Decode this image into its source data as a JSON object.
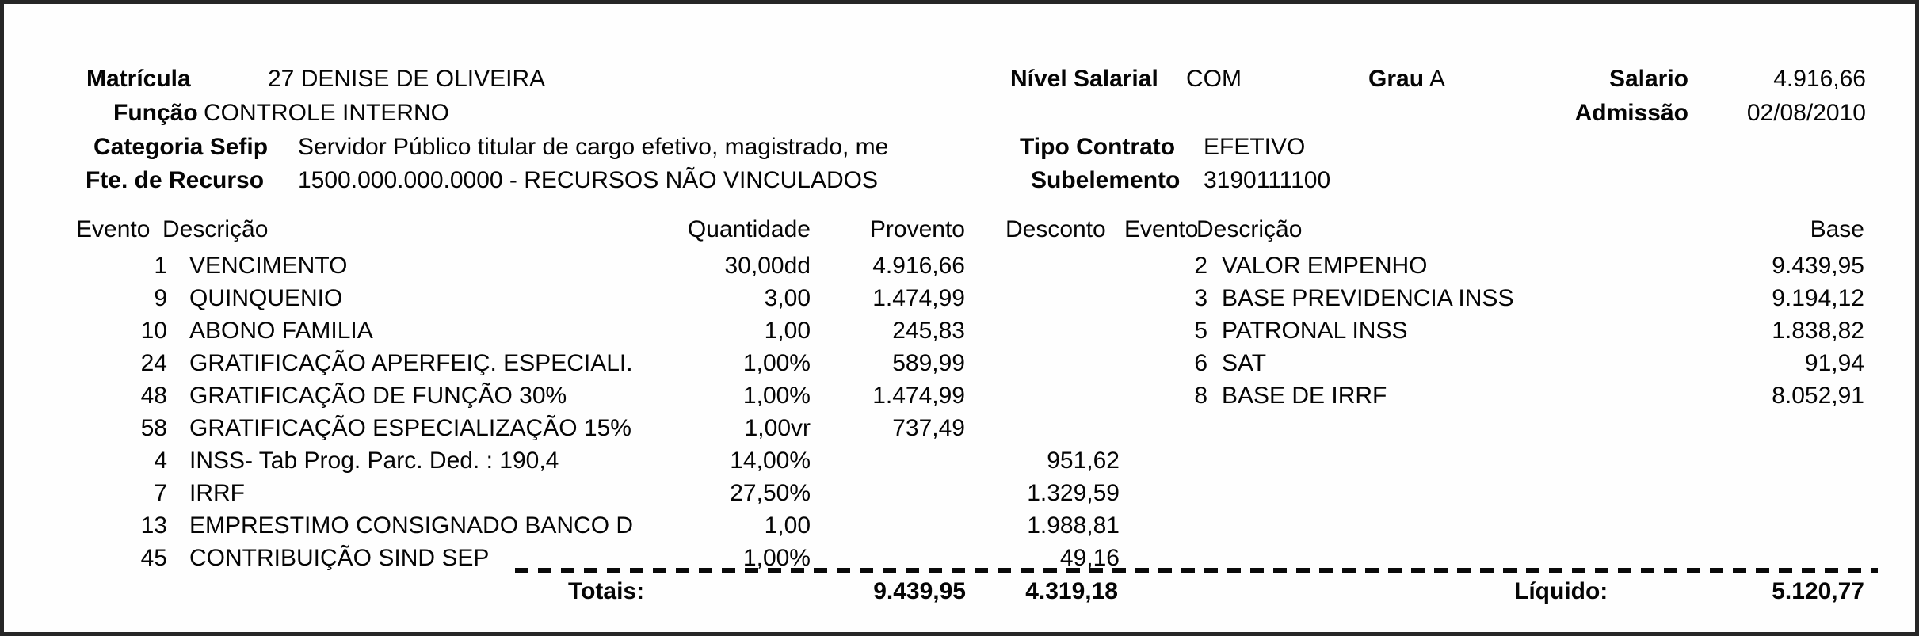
{
  "document_type": "payslip",
  "employee": {
    "matricula_label": "Matrícula",
    "matricula_value": "27 DENISE DE OLIVEIRA",
    "funcao_label": "Função",
    "funcao_value": "CONTROLE INTERNO",
    "categoria_sefip_label": "Categoria Sefip",
    "categoria_sefip_value": "Servidor Público titular de cargo efetivo, magistrado, me",
    "fte_recurso_label": "Fte. de Recurso",
    "fte_recurso_value": "1500.000.000.0000 - RECURSOS NÃO VINCULADOS",
    "nivel_salarial_label": "Nível Salarial",
    "nivel_salarial_value": "COM",
    "grau_label": "Grau",
    "grau_value": "A",
    "salario_label": "Salario",
    "salario_value": "4.916,66",
    "admissao_label": "Admissão",
    "admissao_value": "02/08/2010",
    "tipo_contrato_label": "Tipo Contrato",
    "tipo_contrato_value": "EFETIVO",
    "subelemento_label": "Subelemento",
    "subelemento_value": "3190111100"
  },
  "table": {
    "headers": {
      "evento_left": "Evento",
      "descricao_left": "Descrição",
      "quantidade": "Quantidade",
      "provento": "Provento",
      "desconto": "Desconto",
      "evento_right": "Evento",
      "descricao_right": "Descrição",
      "base": "Base"
    },
    "event_rows": [
      {
        "evento": "1",
        "descricao": "VENCIMENTO",
        "quantidade": "30,00dd",
        "provento": "4.916,66",
        "desconto": ""
      },
      {
        "evento": "9",
        "descricao": "QUINQUENIO",
        "quantidade": "3,00",
        "provento": "1.474,99",
        "desconto": ""
      },
      {
        "evento": "10",
        "descricao": "ABONO FAMILIA",
        "quantidade": "1,00",
        "provento": "245,83",
        "desconto": ""
      },
      {
        "evento": "24",
        "descricao": "GRATIFICAÇÃO APERFEIÇ. ESPECIALI.",
        "quantidade": "1,00%",
        "provento": "589,99",
        "desconto": ""
      },
      {
        "evento": "48",
        "descricao": "GRATIFICAÇÃO DE FUNÇÃO 30%",
        "quantidade": "1,00%",
        "provento": "1.474,99",
        "desconto": ""
      },
      {
        "evento": "58",
        "descricao": "GRATIFICAÇÃO ESPECIALIZAÇÃO 15%",
        "quantidade": "1,00vr",
        "provento": "737,49",
        "desconto": ""
      },
      {
        "evento": "4",
        "descricao": "INSS- Tab Prog. Parc. Ded. : 190,4",
        "quantidade": "14,00%",
        "provento": "",
        "desconto": "951,62"
      },
      {
        "evento": "7",
        "descricao": "IRRF",
        "quantidade": "27,50%",
        "provento": "",
        "desconto": "1.329,59"
      },
      {
        "evento": "13",
        "descricao": "EMPRESTIMO CONSIGNADO BANCO D",
        "quantidade": "1,00",
        "provento": "",
        "desconto": "1.988,81"
      },
      {
        "evento": "45",
        "descricao": "CONTRIBUIÇÃO SIND SEP",
        "quantidade": "1,00%",
        "provento": "",
        "desconto": "49,16"
      }
    ],
    "base_rows": [
      {
        "evento": "2",
        "descricao": "VALOR EMPENHO",
        "base": "9.439,95"
      },
      {
        "evento": "3",
        "descricao": "BASE PREVIDENCIA INSS",
        "base": "9.194,12"
      },
      {
        "evento": "5",
        "descricao": "PATRONAL INSS",
        "base": "1.838,82"
      },
      {
        "evento": "6",
        "descricao": "SAT",
        "base": "91,94"
      },
      {
        "evento": "8",
        "descricao": "BASE DE IRRF",
        "base": "8.052,91"
      }
    ]
  },
  "totals": {
    "totais_label": "Totais:",
    "proventos_total": "9.439,95",
    "descontos_total": "4.319,18",
    "liquido_label": "Líquido:",
    "liquido_value": "5.120,77"
  },
  "colors": {
    "text": "#050505",
    "border": "#262626",
    "background": "#fefefe"
  }
}
